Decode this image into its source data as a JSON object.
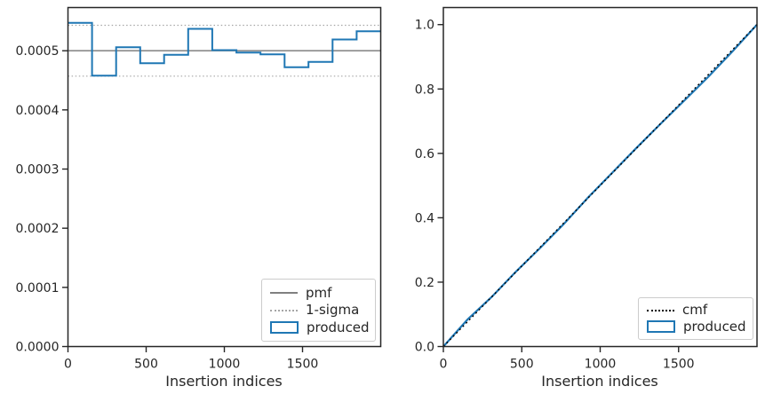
{
  "figure": {
    "background": "#ffffff",
    "text_color": "#262626",
    "accent_blue": "#1f77b4",
    "pmf_gray": "#808080",
    "sigma_gray": "#a6a6a6",
    "cmf_black": "#000000"
  },
  "chart_data": [
    {
      "type": "step",
      "title": "",
      "xlabel": "Insertion indices",
      "ylabel": "",
      "xlim": [
        0,
        2000
      ],
      "ylim": [
        0,
        0.000573
      ],
      "xticks": [
        0,
        500,
        1000,
        1500
      ],
      "xtick_labels": [
        "0",
        "500",
        "1000",
        "1500"
      ],
      "yticks": [
        0,
        0.0001,
        0.0002,
        0.0003,
        0.0004,
        0.0005
      ],
      "ytick_labels": [
        "0.0000",
        "0.0001",
        "0.0002",
        "0.0003",
        "0.0004",
        "0.0005"
      ],
      "grid": false,
      "legend_position": "lower right",
      "series": [
        {
          "name": "1-sigma",
          "style": "dotted-hline",
          "color": "#a6a6a6",
          "y_values": [
            0.000543,
            0.000457
          ]
        },
        {
          "name": "pmf",
          "style": "solid-hline",
          "color": "#808080",
          "y_values": [
            0.0005
          ]
        },
        {
          "name": "produced",
          "style": "step",
          "color": "#1f77b4",
          "bin_edges": [
            0,
            154,
            308,
            462,
            615,
            769,
            923,
            1077,
            1231,
            1385,
            1538,
            1692,
            1846,
            2000
          ],
          "values": [
            0.000547,
            0.000458,
            0.000506,
            0.000479,
            0.000493,
            0.000537,
            0.000501,
            0.000497,
            0.000494,
            0.000472,
            0.000481,
            0.000519,
            0.000533
          ]
        }
      ],
      "legend": {
        "items": [
          {
            "label": "pmf",
            "swatch": "line-solid",
            "color": "#808080"
          },
          {
            "label": "1-sigma",
            "swatch": "line-dotted",
            "color": "#a6a6a6"
          },
          {
            "label": "produced",
            "swatch": "rect-outline",
            "color": "#1f77b4"
          }
        ]
      }
    },
    {
      "type": "line",
      "title": "",
      "xlabel": "Insertion indices",
      "ylabel": "",
      "xlim": [
        0,
        2000
      ],
      "ylim": [
        0,
        1.053
      ],
      "xticks": [
        0,
        500,
        1000,
        1500
      ],
      "xtick_labels": [
        "0",
        "500",
        "1000",
        "1500"
      ],
      "yticks": [
        0,
        0.2,
        0.4,
        0.6,
        0.8,
        1.0
      ],
      "ytick_labels": [
        "0.0",
        "0.2",
        "0.4",
        "0.6",
        "0.8",
        "1.0"
      ],
      "grid": false,
      "legend_position": "lower right",
      "series": [
        {
          "name": "produced",
          "style": "solid",
          "color": "#1f77b4",
          "x": [
            0,
            154,
            308,
            462,
            615,
            769,
            923,
            1077,
            1231,
            1385,
            1538,
            1692,
            1846,
            2000
          ],
          "y": [
            0,
            0.084,
            0.154,
            0.232,
            0.305,
            0.381,
            0.463,
            0.54,
            0.617,
            0.692,
            0.765,
            0.839,
            0.918,
            1.0
          ]
        },
        {
          "name": "cmf",
          "style": "dotted",
          "color": "#000000",
          "x": [
            0,
            2000
          ],
          "y": [
            0,
            1.0
          ]
        }
      ],
      "legend": {
        "items": [
          {
            "label": "cmf",
            "swatch": "line-dotted-black",
            "color": "#000000"
          },
          {
            "label": "produced",
            "swatch": "rect-outline",
            "color": "#1f77b4"
          }
        ]
      }
    }
  ]
}
